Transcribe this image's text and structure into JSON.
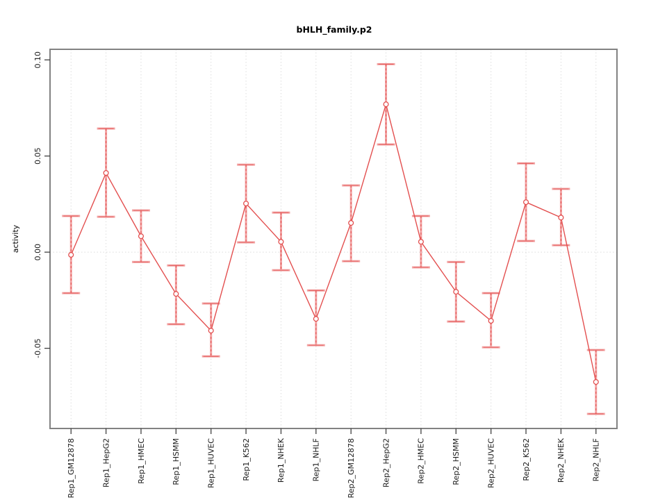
{
  "window": {
    "title": "bHLH_family.p2"
  },
  "chart_data": {
    "type": "line",
    "title": "bHLH_family.p2",
    "xlabel": "",
    "ylabel": "activity",
    "legend": "none",
    "grid": "dotted-vertical-per-category-and-dotted-zero-line",
    "categories": [
      "Rep1_GM12878",
      "Rep1_HepG2",
      "Rep1_HMEC",
      "Rep1_HSMM",
      "Rep1_HUVEC",
      "Rep1_K562",
      "Rep1_NHEK",
      "Rep1_NHLF",
      "Rep2_GM12878",
      "Rep2_HepG2",
      "Rep2_HMEC",
      "Rep2_HSMM",
      "Rep2_HUVEC",
      "Rep2_K562",
      "Rep2_NHEK",
      "Rep2_NHLF"
    ],
    "series": [
      {
        "name": "activity",
        "marker": "open-circle",
        "values": [
          -0.0014,
          0.0412,
          0.0083,
          -0.0217,
          -0.0408,
          0.0253,
          0.0054,
          -0.0347,
          0.0152,
          0.0769,
          0.0054,
          -0.0206,
          -0.0357,
          0.026,
          0.018,
          -0.0675
        ],
        "error_high": [
          0.0188,
          0.0643,
          0.0217,
          -0.0069,
          -0.0267,
          0.0455,
          0.0206,
          -0.0199,
          0.0347,
          0.0978,
          0.0188,
          -0.0051,
          -0.0213,
          0.0462,
          0.0329,
          -0.0509
        ],
        "error_low": [
          -0.0213,
          0.0184,
          -0.0051,
          -0.0375,
          -0.0542,
          0.0051,
          -0.0094,
          -0.0484,
          -0.0047,
          0.056,
          -0.0079,
          -0.0361,
          -0.0495,
          0.0058,
          0.0036,
          -0.0841
        ]
      }
    ],
    "yticks": [
      -0.05,
      0.0,
      0.05,
      0.1
    ],
    "ytick_labels": [
      "-0.05",
      "0.00",
      "0.05",
      "0.10"
    ],
    "ylim": [
      -0.0917,
      0.1055
    ],
    "colors": {
      "line": "#e34f4f",
      "error_bar": "#f2a3a3",
      "marker_fill": "#ffffff",
      "grid": "#dcdcdc",
      "box": "#828282",
      "tick": "#404040",
      "text": "#000000"
    }
  }
}
